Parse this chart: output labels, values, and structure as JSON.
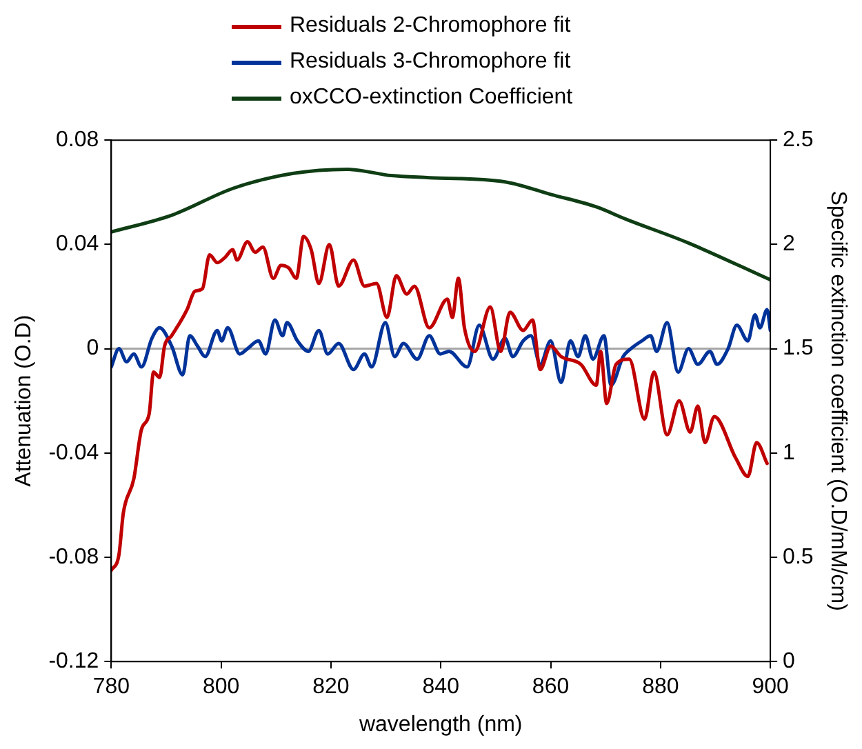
{
  "chart_data": {
    "type": "line",
    "xlabel": "wavelength (nm)",
    "ylabel": "Attenuation (O.D)",
    "y2label": "Specific extinction coefficient (O.D/mM/cm)",
    "xlim": [
      780,
      900
    ],
    "xticks": [
      780,
      800,
      820,
      840,
      860,
      880,
      900
    ],
    "ylim": [
      -0.12,
      0.08
    ],
    "yticks": [
      -0.12,
      -0.08,
      -0.04,
      0,
      0.04,
      0.08
    ],
    "y2lim": [
      0,
      2.5
    ],
    "y2ticks": [
      0,
      0.5,
      1,
      1.5,
      2,
      2.5
    ],
    "grid": false,
    "legend": "top",
    "marker": "none",
    "line_style": "solid",
    "ref_lines": [
      {
        "axis": "y",
        "value": 0,
        "color": "#a6a6a6"
      }
    ],
    "series": [
      {
        "name": "Residuals 2-Chromophore fit",
        "color": "#c00000",
        "x": [
          780,
          781.4,
          782.2,
          784.1,
          785.5,
          786.9,
          787.7,
          788.8,
          789.7,
          791.0,
          793.8,
          795.2,
          796.6,
          797.9,
          799.3,
          800.7,
          802.1,
          802.9,
          804.8,
          806.2,
          807.6,
          809.5,
          810.9,
          812.3,
          813.7,
          815.0,
          816.4,
          817.8,
          819.7,
          821.4,
          824.1,
          826.1,
          828.3,
          830.2,
          831.9,
          833.8,
          835.2,
          837.9,
          841.2,
          842.1,
          843.2,
          844.3,
          846.2,
          849.0,
          850.9,
          852.6,
          855.0,
          856.7,
          858.1,
          860.0,
          861.9,
          865.5,
          868.3,
          869.1,
          870.2,
          871.9,
          874.3,
          877.1,
          878.8,
          881.2,
          883.4,
          885.4,
          886.8,
          888.1,
          889.8,
          893.7,
          895.9,
          897.5,
          899.4
        ],
        "values": [
          -0.085,
          -0.079,
          -0.063,
          -0.05,
          -0.031,
          -0.025,
          -0.009,
          -0.011,
          0.001,
          0.005,
          0.015,
          0.022,
          0.023,
          0.036,
          0.033,
          0.035,
          0.038,
          0.034,
          0.041,
          0.037,
          0.039,
          0.027,
          0.032,
          0.031,
          0.027,
          0.043,
          0.038,
          0.025,
          0.04,
          0.024,
          0.034,
          0.024,
          0.025,
          0.012,
          0.028,
          0.021,
          0.024,
          0.008,
          0.019,
          0.012,
          0.027,
          0.008,
          -0.001,
          0.016,
          -0.001,
          0.014,
          0.007,
          0.011,
          -0.008,
          0.001,
          -0.003,
          -0.006,
          -0.014,
          -0.001,
          -0.021,
          -0.006,
          -0.004,
          -0.027,
          -0.009,
          -0.033,
          -0.02,
          -0.032,
          -0.022,
          -0.036,
          -0.026,
          -0.042,
          -0.049,
          -0.036,
          -0.044
        ]
      },
      {
        "name": "Residuals 3-Chromophore fit",
        "color": "#003399",
        "x": [
          780,
          781.4,
          782.8,
          784.1,
          785.5,
          787.4,
          788.8,
          791.0,
          793.0,
          794.3,
          795.7,
          797.1,
          799.3,
          800.1,
          801.2,
          803.4,
          804.8,
          806.8,
          808.1,
          809.8,
          811.2,
          812.0,
          813.9,
          815.9,
          817.8,
          819.4,
          821.4,
          824.1,
          826.1,
          827.4,
          829.9,
          831.6,
          833.2,
          835.7,
          837.9,
          839.9,
          841.5,
          844.8,
          847.0,
          849.5,
          851.7,
          853.1,
          855.0,
          856.4,
          858.1,
          860.0,
          861.9,
          863.6,
          865.0,
          866.3,
          867.7,
          869.7,
          871.0,
          873.2,
          874.6,
          876.6,
          878.2,
          879.3,
          881.2,
          883.2,
          885.1,
          886.8,
          889.0,
          890.3,
          892.3,
          893.9,
          895.9,
          897.2,
          898.1,
          899.4,
          900
        ],
        "values": [
          -0.007,
          0,
          -0.005,
          -0.002,
          -0.007,
          0.004,
          0.008,
          0.001,
          -0.01,
          0.005,
          0.001,
          -0.003,
          0.007,
          0.003,
          0.008,
          -0.002,
          0,
          0.003,
          -0.002,
          0.011,
          0.005,
          0.01,
          0.003,
          -0.001,
          0.007,
          -0.002,
          0.002,
          -0.008,
          -0.002,
          -0.007,
          0.01,
          -0.003,
          0.002,
          -0.004,
          0.005,
          -0.002,
          -0.001,
          -0.007,
          0.009,
          -0.004,
          0.004,
          -0.003,
          0.003,
          0.005,
          -0.006,
          0.003,
          -0.013,
          0.003,
          -0.003,
          0.005,
          -0.004,
          0.005,
          -0.014,
          -0.003,
          0,
          0.003,
          0.005,
          -0.001,
          0.01,
          -0.009,
          0,
          -0.006,
          -0.001,
          -0.006,
          0,
          0.009,
          0.003,
          0.013,
          0.008,
          0.015,
          0.007
        ]
      },
      {
        "name": "oxCCO-extinction Coefficient",
        "color": "#0f3d14",
        "axis": "y2",
        "x": [
          780,
          791,
          802.3,
          813,
          823,
          831,
          838,
          851.7,
          860,
          868.3,
          873.8,
          884.8,
          900
        ],
        "values": [
          2.06,
          2.14,
          2.27,
          2.34,
          2.36,
          2.33,
          2.32,
          2.3,
          2.24,
          2.18,
          2.12,
          2.01,
          1.83
        ]
      }
    ]
  }
}
